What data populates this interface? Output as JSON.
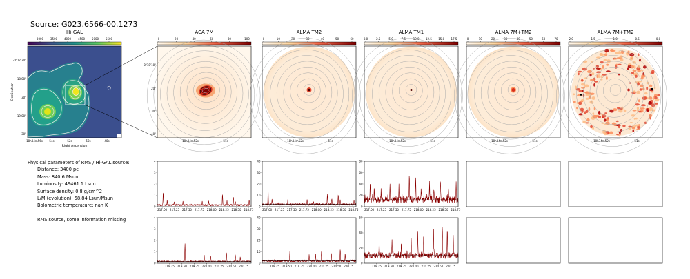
{
  "title": "Source: G023.6566-00.1273",
  "higal": {
    "title": "Hi-GAL",
    "cbar_ticks": [
      "3000",
      "3500",
      "4000",
      "4500",
      "5000",
      "5500"
    ],
    "ytick_labels": [
      "-0°17'30\"",
      "18'00\"",
      "30\"",
      "19'00\"",
      "30\""
    ],
    "xtick_labels": [
      "18h34m56s",
      "54s",
      "52s",
      "50s",
      "48s"
    ],
    "xlabel": "Right Ascension",
    "ylabel": "Declination"
  },
  "maps": [
    {
      "title": "ACA 7M",
      "cbar_ticks": [
        "0",
        "20",
        "40",
        "60",
        "80",
        "100"
      ],
      "ytick_labels": [
        "-0°18'10\"",
        "20\"",
        "30\"",
        "40\""
      ],
      "xtick_labels": [
        "18h34m52s",
        "51s"
      ]
    },
    {
      "title": "ALMA TM2",
      "cbar_ticks": [
        "0",
        "10",
        "20",
        "30",
        "40",
        "50",
        "60"
      ],
      "ytick_labels": [],
      "xtick_labels": [
        "18h34m52s",
        "51s"
      ]
    },
    {
      "title": "ALMA TM1",
      "cbar_ticks": [
        "0.0",
        "2.5",
        "5.0",
        "7.5",
        "10.0",
        "12.5",
        "15.0",
        "17.5"
      ],
      "ytick_labels": [],
      "xtick_labels": [
        "18h34m52s",
        "51s"
      ]
    },
    {
      "title": "ALMA 7M+TM2",
      "cbar_ticks": [
        "0",
        "10",
        "20",
        "30",
        "40",
        "50",
        "60",
        "70"
      ],
      "ytick_labels": [],
      "xtick_labels": [
        "18h34m52s",
        "51s"
      ]
    },
    {
      "title": "ALMA 7M+TM2",
      "cbar_ticks": [
        "−2.0",
        "−1.5",
        "−1.0",
        "−0.5",
        "0.0"
      ],
      "ytick_labels": [],
      "xtick_labels": [
        "18h34m52s",
        "51s"
      ]
    }
  ],
  "info": {
    "heading": "Physical parameters of RMS / Hi-GAL source:",
    "lines": [
      "Distance: 3400 pc",
      "Mass: 840.6 Msun",
      "Luminosity: 49461.1 Lsun",
      "Surface density: 0.8 g/cm^2",
      "L/M (evolution): 58.84 Lsun/Msun",
      "Bolometric temperature: nan K"
    ],
    "note": "RMS source, some information missing"
  },
  "chart_data": [
    {
      "type": "line",
      "panel": "spectrum-aca-7m-low",
      "x_range": [
        216.9,
        218.8
      ],
      "ylim": [
        0,
        4
      ],
      "yticks": [
        "0",
        "1",
        "2",
        "3",
        "4"
      ],
      "xticks": [
        "217.00",
        "217.25",
        "217.50",
        "217.75",
        "218.00",
        "218.25",
        "218.50",
        "218.75"
      ],
      "baseline": 0.15,
      "noise": 0.07,
      "peaks": [
        [
          217.02,
          1.2
        ],
        [
          217.1,
          0.5
        ],
        [
          217.24,
          0.3
        ],
        [
          217.42,
          0.35
        ],
        [
          217.81,
          0.4
        ],
        [
          217.94,
          0.35
        ],
        [
          218.22,
          1.0
        ],
        [
          218.31,
          0.4
        ],
        [
          218.44,
          0.8
        ],
        [
          218.48,
          0.3
        ],
        [
          218.76,
          0.4
        ]
      ]
    },
    {
      "type": "line",
      "panel": "spectrum-alma-tm2-low",
      "x_range": [
        216.9,
        218.8
      ],
      "ylim": [
        0,
        40
      ],
      "yticks": [
        "0",
        "10",
        "20",
        "30",
        "40"
      ],
      "xticks": [
        "217.00",
        "217.25",
        "217.50",
        "217.75",
        "218.00",
        "218.25",
        "218.50",
        "218.75"
      ],
      "baseline": 2,
      "noise": 0.8,
      "peaks": [
        [
          217.02,
          12
        ],
        [
          217.1,
          5
        ],
        [
          217.24,
          3
        ],
        [
          217.42,
          4
        ],
        [
          217.81,
          4
        ],
        [
          217.94,
          3
        ],
        [
          218.22,
          10
        ],
        [
          218.31,
          5
        ],
        [
          218.44,
          9
        ],
        [
          218.48,
          4
        ],
        [
          218.76,
          4
        ]
      ]
    },
    {
      "type": "line",
      "panel": "spectrum-alma-tm1-low",
      "x_range": [
        216.9,
        218.8
      ],
      "ylim": [
        0,
        80
      ],
      "yticks": [
        "0",
        "20",
        "40",
        "60",
        "80"
      ],
      "xticks": [
        "217.00",
        "217.25",
        "217.50",
        "217.75",
        "218.00",
        "218.25",
        "218.50",
        "218.75"
      ],
      "baseline": 12,
      "noise": 6,
      "peaks": [
        [
          217.02,
          28
        ],
        [
          217.1,
          20
        ],
        [
          217.24,
          16
        ],
        [
          217.42,
          22
        ],
        [
          217.6,
          25
        ],
        [
          217.81,
          42
        ],
        [
          217.94,
          35
        ],
        [
          218.05,
          20
        ],
        [
          218.22,
          30
        ],
        [
          218.31,
          18
        ],
        [
          218.44,
          40
        ],
        [
          218.6,
          25
        ],
        [
          218.76,
          32
        ]
      ]
    },
    {
      "type": "line",
      "panel": "spectrum-aca-7m-high",
      "x_range": [
        219.0,
        220.9
      ],
      "ylim": [
        0,
        4
      ],
      "yticks": [
        "0",
        "1",
        "2",
        "3",
        "4"
      ],
      "xticks": [
        "219.25",
        "219.50",
        "219.75",
        "220.00",
        "220.25",
        "220.50",
        "220.75"
      ],
      "baseline": 0.15,
      "noise": 0.06,
      "peaks": [
        [
          219.56,
          1.6
        ],
        [
          219.95,
          0.6
        ],
        [
          220.08,
          0.5
        ],
        [
          220.4,
          0.8
        ],
        [
          220.58,
          0.6
        ],
        [
          220.68,
          0.4
        ]
      ]
    },
    {
      "type": "line",
      "panel": "spectrum-alma-tm2-high",
      "x_range": [
        219.0,
        220.9
      ],
      "ylim": [
        0,
        40
      ],
      "yticks": [
        "0",
        "10",
        "20",
        "30",
        "40"
      ],
      "xticks": [
        "219.25",
        "219.50",
        "219.75",
        "220.00",
        "220.25",
        "220.50",
        "220.75"
      ],
      "baseline": 2,
      "noise": 1.0,
      "peaks": [
        [
          219.56,
          8
        ],
        [
          219.95,
          5
        ],
        [
          220.08,
          6
        ],
        [
          220.2,
          8
        ],
        [
          220.4,
          7
        ],
        [
          220.58,
          11
        ],
        [
          220.68,
          7
        ]
      ]
    },
    {
      "type": "line",
      "panel": "spectrum-alma-tm1-high",
      "x_range": [
        219.0,
        220.9
      ],
      "ylim": [
        0,
        60
      ],
      "yticks": [
        "0",
        "20",
        "40",
        "60"
      ],
      "xticks": [
        "219.25",
        "219.50",
        "219.75",
        "220.00",
        "220.25",
        "220.50",
        "220.75"
      ],
      "baseline": 10,
      "noise": 4,
      "peaks": [
        [
          219.3,
          14
        ],
        [
          219.56,
          22
        ],
        [
          219.75,
          16
        ],
        [
          219.95,
          24
        ],
        [
          220.08,
          30
        ],
        [
          220.2,
          28
        ],
        [
          220.4,
          34
        ],
        [
          220.58,
          36
        ],
        [
          220.68,
          32
        ],
        [
          220.8,
          30
        ]
      ]
    }
  ]
}
